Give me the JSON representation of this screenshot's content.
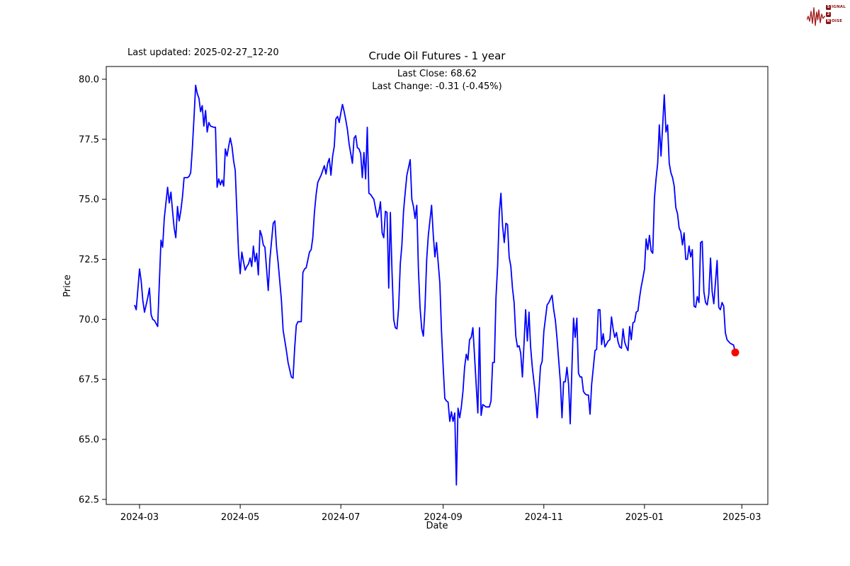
{
  "branding": {
    "logo_color": "#8b1212",
    "lines": [
      {
        "badge": "S",
        "rest": "IGNAL"
      },
      {
        "badge": "2",
        "rest": ""
      },
      {
        "badge": "N",
        "rest": "OISE"
      }
    ]
  },
  "header": {
    "last_updated_label": "Last updated: 2025-02-27_12-20"
  },
  "chart_data": {
    "type": "line",
    "title": "Crude Oil Futures - 1 year",
    "subtitle_lines": [
      "Last Close: 68.62",
      "Last Change: -0.31 (-0.45%)"
    ],
    "xlabel": "Date",
    "ylabel": "Price",
    "x_unit": "trading days since 2024-02-27",
    "ylim": [
      62.29,
      80.53
    ],
    "grid": false,
    "line_color": "#0000ff",
    "last_point_color": "#ff0000",
    "last_close": 68.62,
    "last_change": -0.31,
    "last_change_pct": "-0.45%",
    "yticks": [
      80.0,
      77.5,
      75.0,
      72.5,
      70.0,
      67.5,
      65.0,
      62.5
    ],
    "xticks": [
      {
        "d": 3,
        "label": "2024-03"
      },
      {
        "d": 64,
        "label": "2024-05"
      },
      {
        "d": 125,
        "label": "2024-07"
      },
      {
        "d": 187,
        "label": "2024-09"
      },
      {
        "d": 248,
        "label": "2024-11"
      },
      {
        "d": 309,
        "label": "2025-01"
      },
      {
        "d": 368,
        "label": "2025-03"
      }
    ],
    "points": [
      [
        0,
        70.6
      ],
      [
        1,
        70.4
      ],
      [
        3,
        72.1
      ],
      [
        4,
        71.6
      ],
      [
        5,
        70.8
      ],
      [
        6,
        70.3
      ],
      [
        8,
        70.9
      ],
      [
        9,
        71.3
      ],
      [
        10,
        70.2
      ],
      [
        11,
        70.0
      ],
      [
        12,
        69.95
      ],
      [
        14,
        69.7
      ],
      [
        15,
        71.5
      ],
      [
        16,
        73.3
      ],
      [
        17,
        73.0
      ],
      [
        18,
        74.2
      ],
      [
        20,
        75.5
      ],
      [
        21,
        74.85
      ],
      [
        22,
        75.3
      ],
      [
        23,
        74.5
      ],
      [
        24,
        73.8
      ],
      [
        25,
        73.4
      ],
      [
        26,
        74.7
      ],
      [
        27,
        74.1
      ],
      [
        28,
        74.5
      ],
      [
        29,
        75.1
      ],
      [
        30,
        75.9
      ],
      [
        32,
        75.9
      ],
      [
        33,
        75.95
      ],
      [
        34,
        76.1
      ],
      [
        35,
        77.1
      ],
      [
        36,
        78.4
      ],
      [
        37,
        79.75
      ],
      [
        38,
        79.4
      ],
      [
        39,
        79.2
      ],
      [
        40,
        78.65
      ],
      [
        41,
        78.9
      ],
      [
        42,
        78.05
      ],
      [
        43,
        78.7
      ],
      [
        44,
        77.8
      ],
      [
        45,
        78.2
      ],
      [
        46,
        78.05
      ],
      [
        48,
        78.0
      ],
      [
        49,
        78.0
      ],
      [
        50,
        75.5
      ],
      [
        51,
        75.85
      ],
      [
        52,
        75.6
      ],
      [
        53,
        75.8
      ],
      [
        54,
        75.55
      ],
      [
        55,
        77.1
      ],
      [
        56,
        76.8
      ],
      [
        57,
        77.2
      ],
      [
        58,
        77.55
      ],
      [
        59,
        77.2
      ],
      [
        60,
        76.6
      ],
      [
        61,
        76.2
      ],
      [
        62,
        74.5
      ],
      [
        63,
        72.75
      ],
      [
        64,
        71.9
      ],
      [
        65,
        72.8
      ],
      [
        66,
        72.4
      ],
      [
        67,
        72.05
      ],
      [
        68,
        72.2
      ],
      [
        69,
        72.3
      ],
      [
        70,
        72.55
      ],
      [
        71,
        72.2
      ],
      [
        72,
        73.05
      ],
      [
        73,
        72.4
      ],
      [
        74,
        72.75
      ],
      [
        75,
        71.85
      ],
      [
        76,
        73.7
      ],
      [
        77,
        73.5
      ],
      [
        78,
        73.1
      ],
      [
        79,
        73.0
      ],
      [
        81,
        71.2
      ],
      [
        82,
        72.5
      ],
      [
        84,
        74.0
      ],
      [
        85,
        74.1
      ],
      [
        86,
        73.0
      ],
      [
        87,
        72.35
      ],
      [
        89,
        70.8
      ],
      [
        90,
        69.55
      ],
      [
        92,
        68.7
      ],
      [
        93,
        68.2
      ],
      [
        95,
        67.6
      ],
      [
        96,
        67.55
      ],
      [
        97,
        68.8
      ],
      [
        98,
        69.75
      ],
      [
        99,
        69.9
      ],
      [
        101,
        69.9
      ],
      [
        102,
        71.95
      ],
      [
        103,
        72.1
      ],
      [
        104,
        72.15
      ],
      [
        106,
        72.8
      ],
      [
        107,
        72.9
      ],
      [
        108,
        73.4
      ],
      [
        109,
        74.45
      ],
      [
        110,
        75.2
      ],
      [
        111,
        75.7
      ],
      [
        112,
        75.85
      ],
      [
        113,
        76.0
      ],
      [
        114,
        76.2
      ],
      [
        115,
        76.4
      ],
      [
        116,
        76.05
      ],
      [
        117,
        76.5
      ],
      [
        118,
        76.7
      ],
      [
        119,
        76.0
      ],
      [
        120,
        76.8
      ],
      [
        121,
        77.2
      ],
      [
        122,
        78.35
      ],
      [
        123,
        78.45
      ],
      [
        124,
        78.2
      ],
      [
        125,
        78.6
      ],
      [
        126,
        78.95
      ],
      [
        127,
        78.65
      ],
      [
        128,
        78.3
      ],
      [
        129,
        77.9
      ],
      [
        130,
        77.3
      ],
      [
        131,
        76.9
      ],
      [
        132,
        76.5
      ],
      [
        133,
        77.55
      ],
      [
        134,
        77.65
      ],
      [
        135,
        77.15
      ],
      [
        136,
        77.1
      ],
      [
        137,
        76.9
      ],
      [
        138,
        75.9
      ],
      [
        139,
        76.95
      ],
      [
        140,
        75.85
      ],
      [
        141,
        78.0
      ],
      [
        142,
        75.25
      ],
      [
        143,
        75.2
      ],
      [
        145,
        75.0
      ],
      [
        147,
        74.25
      ],
      [
        148,
        74.45
      ],
      [
        149,
        74.9
      ],
      [
        150,
        73.6
      ],
      [
        151,
        73.4
      ],
      [
        152,
        74.5
      ],
      [
        153,
        74.45
      ],
      [
        154,
        71.3
      ],
      [
        155,
        74.45
      ],
      [
        156,
        72.0
      ],
      [
        157,
        70.0
      ],
      [
        158,
        69.65
      ],
      [
        159,
        69.6
      ],
      [
        160,
        70.5
      ],
      [
        161,
        72.3
      ],
      [
        162,
        73.1
      ],
      [
        163,
        74.5
      ],
      [
        164,
        75.3
      ],
      [
        165,
        76.0
      ],
      [
        167,
        76.65
      ],
      [
        168,
        75.0
      ],
      [
        169,
        74.7
      ],
      [
        170,
        74.2
      ],
      [
        171,
        74.75
      ],
      [
        172,
        72.1
      ],
      [
        173,
        70.5
      ],
      [
        174,
        69.6
      ],
      [
        175,
        69.3
      ],
      [
        176,
        70.5
      ],
      [
        177,
        72.5
      ],
      [
        178,
        73.5
      ],
      [
        180,
        74.75
      ],
      [
        181,
        73.5
      ],
      [
        182,
        72.6
      ],
      [
        183,
        73.2
      ],
      [
        185,
        71.5
      ],
      [
        186,
        69.5
      ],
      [
        187,
        68.0
      ],
      [
        188,
        66.7
      ],
      [
        189,
        66.6
      ],
      [
        190,
        66.55
      ],
      [
        191,
        65.75
      ],
      [
        192,
        66.15
      ],
      [
        193,
        65.75
      ],
      [
        194,
        66.1
      ],
      [
        195,
        63.1
      ],
      [
        196,
        66.3
      ],
      [
        197,
        65.9
      ],
      [
        198,
        66.35
      ],
      [
        199,
        67.0
      ],
      [
        200,
        68.0
      ],
      [
        201,
        68.55
      ],
      [
        202,
        68.3
      ],
      [
        203,
        69.15
      ],
      [
        204,
        69.25
      ],
      [
        205,
        69.65
      ],
      [
        206,
        68.5
      ],
      [
        207,
        67.3
      ],
      [
        208,
        66.1
      ],
      [
        209,
        69.65
      ],
      [
        210,
        66.0
      ],
      [
        211,
        66.45
      ],
      [
        213,
        66.35
      ],
      [
        215,
        66.35
      ],
      [
        216,
        66.6
      ],
      [
        217,
        68.2
      ],
      [
        218,
        68.2
      ],
      [
        219,
        70.9
      ],
      [
        220,
        72.2
      ],
      [
        221,
        74.45
      ],
      [
        222,
        75.25
      ],
      [
        223,
        73.9
      ],
      [
        224,
        73.2
      ],
      [
        225,
        74.0
      ],
      [
        226,
        73.95
      ],
      [
        227,
        72.6
      ],
      [
        228,
        72.2
      ],
      [
        229,
        71.3
      ],
      [
        230,
        70.7
      ],
      [
        231,
        69.3
      ],
      [
        232,
        68.85
      ],
      [
        233,
        68.9
      ],
      [
        234,
        68.6
      ],
      [
        235,
        67.6
      ],
      [
        236,
        69.0
      ],
      [
        237,
        70.4
      ],
      [
        238,
        69.1
      ],
      [
        239,
        70.3
      ],
      [
        240,
        68.85
      ],
      [
        241,
        68.0
      ],
      [
        243,
        66.8
      ],
      [
        244,
        65.9
      ],
      [
        245,
        67.0
      ],
      [
        246,
        68.05
      ],
      [
        247,
        68.25
      ],
      [
        248,
        69.5
      ],
      [
        250,
        70.6
      ],
      [
        251,
        70.7
      ],
      [
        252,
        70.85
      ],
      [
        253,
        71.0
      ],
      [
        254,
        70.4
      ],
      [
        255,
        69.95
      ],
      [
        256,
        69.2
      ],
      [
        258,
        67.4
      ],
      [
        259,
        65.9
      ],
      [
        260,
        67.4
      ],
      [
        261,
        67.4
      ],
      [
        262,
        68.0
      ],
      [
        263,
        67.3
      ],
      [
        264,
        65.65
      ],
      [
        265,
        67.95
      ],
      [
        266,
        70.05
      ],
      [
        267,
        69.25
      ],
      [
        268,
        70.05
      ],
      [
        269,
        67.75
      ],
      [
        270,
        67.6
      ],
      [
        271,
        67.6
      ],
      [
        272,
        67.0
      ],
      [
        273,
        66.9
      ],
      [
        274,
        66.85
      ],
      [
        275,
        66.85
      ],
      [
        276,
        66.05
      ],
      [
        277,
        67.3
      ],
      [
        278,
        68.0
      ],
      [
        279,
        68.7
      ],
      [
        280,
        68.75
      ],
      [
        281,
        70.4
      ],
      [
        282,
        70.4
      ],
      [
        283,
        68.95
      ],
      [
        284,
        69.4
      ],
      [
        285,
        68.85
      ],
      [
        287,
        69.1
      ],
      [
        288,
        69.15
      ],
      [
        289,
        70.1
      ],
      [
        290,
        69.6
      ],
      [
        291,
        69.25
      ],
      [
        292,
        69.45
      ],
      [
        293,
        69.05
      ],
      [
        294,
        68.85
      ],
      [
        295,
        68.8
      ],
      [
        296,
        69.6
      ],
      [
        297,
        69.05
      ],
      [
        298,
        68.85
      ],
      [
        299,
        68.7
      ],
      [
        300,
        69.7
      ],
      [
        301,
        69.15
      ],
      [
        302,
        69.85
      ],
      [
        303,
        69.9
      ],
      [
        304,
        70.3
      ],
      [
        305,
        70.35
      ],
      [
        306,
        70.9
      ],
      [
        307,
        71.35
      ],
      [
        308,
        71.7
      ],
      [
        309,
        72.1
      ],
      [
        310,
        73.35
      ],
      [
        311,
        72.9
      ],
      [
        312,
        73.5
      ],
      [
        313,
        72.85
      ],
      [
        314,
        72.75
      ],
      [
        315,
        75.05
      ],
      [
        316,
        75.85
      ],
      [
        317,
        76.5
      ],
      [
        318,
        78.1
      ],
      [
        319,
        76.8
      ],
      [
        320,
        78.05
      ],
      [
        321,
        79.35
      ],
      [
        322,
        77.8
      ],
      [
        323,
        78.1
      ],
      [
        324,
        76.5
      ],
      [
        325,
        76.1
      ],
      [
        326,
        75.9
      ],
      [
        327,
        75.55
      ],
      [
        328,
        74.65
      ],
      [
        329,
        74.4
      ],
      [
        330,
        73.8
      ],
      [
        331,
        73.65
      ],
      [
        332,
        73.1
      ],
      [
        333,
        73.6
      ],
      [
        334,
        72.5
      ],
      [
        335,
        72.5
      ],
      [
        336,
        73.05
      ],
      [
        337,
        72.6
      ],
      [
        338,
        72.9
      ],
      [
        339,
        70.55
      ],
      [
        340,
        70.5
      ],
      [
        341,
        70.95
      ],
      [
        342,
        70.7
      ],
      [
        343,
        73.2
      ],
      [
        344,
        73.25
      ],
      [
        345,
        71.15
      ],
      [
        346,
        70.7
      ],
      [
        347,
        70.6
      ],
      [
        348,
        71.05
      ],
      [
        349,
        72.55
      ],
      [
        350,
        71.15
      ],
      [
        351,
        70.65
      ],
      [
        353,
        72.45
      ],
      [
        354,
        70.5
      ],
      [
        355,
        70.4
      ],
      [
        356,
        70.7
      ],
      [
        357,
        70.55
      ],
      [
        358,
        69.45
      ],
      [
        359,
        69.15
      ],
      [
        361,
        69.0
      ],
      [
        363,
        68.93
      ],
      [
        364,
        68.62
      ]
    ]
  }
}
